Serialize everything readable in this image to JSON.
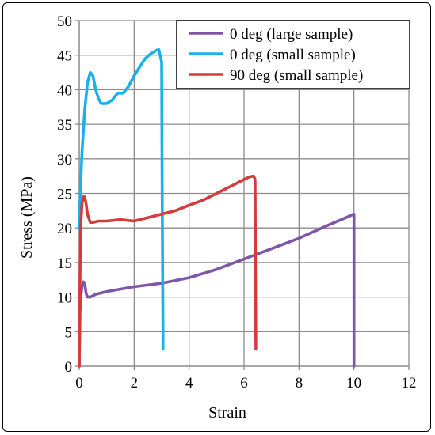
{
  "chart_data": {
    "type": "line",
    "title": "",
    "xlabel": "Strain",
    "ylabel": "Stress (MPa)",
    "xlim": [
      0,
      12
    ],
    "ylim": [
      0,
      50
    ],
    "xticks": [
      0,
      2,
      4,
      6,
      8,
      10,
      12
    ],
    "yticks": [
      0,
      5,
      10,
      15,
      20,
      25,
      30,
      35,
      40,
      45,
      50
    ],
    "grid": true,
    "legend_position": "top-right",
    "series": [
      {
        "name": "0 deg (large sample)",
        "color": "#7f56a7",
        "x": [
          0,
          0.03,
          0.07,
          0.1,
          0.15,
          0.2,
          0.25,
          0.3,
          0.4,
          0.6,
          1,
          2,
          3,
          4,
          5,
          6,
          7,
          8,
          9,
          9.6,
          10,
          10,
          10
        ],
        "y": [
          0,
          8,
          10.5,
          11.5,
          12.2,
          12,
          10.5,
          10,
          10,
          10.4,
          10.8,
          11.5,
          12,
          12.8,
          14,
          15.5,
          17,
          18.5,
          20.3,
          21.3,
          22,
          10,
          0
        ]
      },
      {
        "name": "0 deg (small sample)",
        "color": "#1ab1e8",
        "x": [
          0,
          0.05,
          0.1,
          0.2,
          0.3,
          0.4,
          0.5,
          0.6,
          0.7,
          0.8,
          0.9,
          1,
          1.2,
          1.4,
          1.6,
          1.8,
          2,
          2.2,
          2.4,
          2.6,
          2.8,
          2.9,
          3,
          3.02,
          3.05,
          3.05
        ],
        "y": [
          20,
          26,
          31,
          37,
          41,
          42.5,
          42,
          40,
          38.7,
          38,
          38,
          38,
          38.5,
          39.5,
          39.5,
          40.5,
          42,
          43.3,
          44.5,
          45.2,
          45.7,
          45.8,
          44,
          25,
          5,
          2.5
        ]
      },
      {
        "name": "90 deg (small sample)",
        "color": "#d63b3b",
        "x": [
          0,
          0.02,
          0.05,
          0.1,
          0.15,
          0.2,
          0.25,
          0.3,
          0.4,
          0.5,
          0.7,
          1,
          1.5,
          2,
          2.5,
          3,
          3.5,
          4,
          4.5,
          5,
          5.5,
          6,
          6.2,
          6.35,
          6.4,
          6.42,
          6.43
        ],
        "y": [
          0,
          10,
          20,
          23.5,
          24.5,
          24.5,
          23.5,
          22,
          20.8,
          20.8,
          21,
          21,
          21.2,
          21,
          21.5,
          22,
          22.5,
          23.3,
          24,
          25,
          26,
          27,
          27.4,
          27.5,
          27,
          10,
          2.5
        ]
      }
    ]
  }
}
